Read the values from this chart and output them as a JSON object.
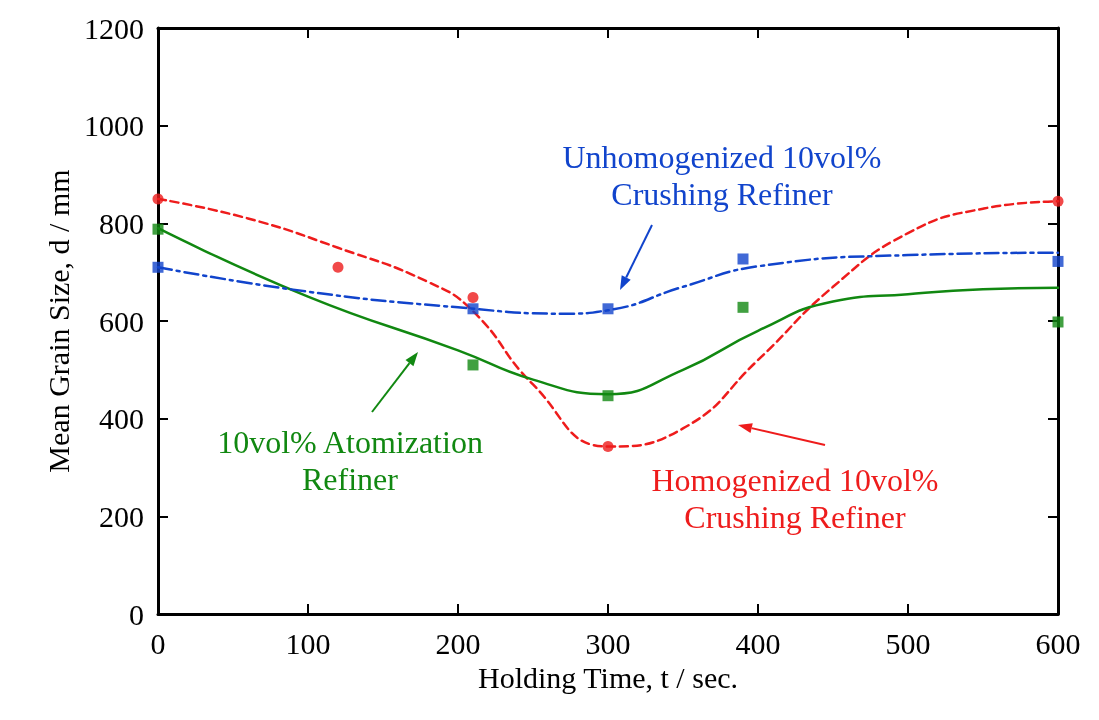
{
  "chart_data": {
    "type": "scatter",
    "xlabel": "Holding Time, t / sec.",
    "ylabel": "Mean Grain Size, d / mm",
    "xlim": [
      0,
      600
    ],
    "xticks": [
      0,
      100,
      200,
      300,
      400,
      500,
      600
    ],
    "ylim": [
      0,
      1200
    ],
    "yticks": [
      0,
      200,
      400,
      600,
      800,
      1000,
      1200
    ],
    "grid": false,
    "series": [
      {
        "type": "scatter",
        "color": "#ee1c1c",
        "marker": "circle",
        "x": [
          0,
          120,
          210,
          300,
          600
        ],
        "values": [
          850,
          710,
          648,
          343,
          845
        ]
      },
      {
        "type": "line",
        "color": "#ee1c1c",
        "marker": "none",
        "line_style": "dashed",
        "x": [
          0,
          60,
          120,
          180,
          210,
          250,
          300,
          350,
          400,
          450,
          500,
          550,
          600
        ],
        "values": [
          850,
          810,
          750,
          680,
          620,
          470,
          343,
          380,
          520,
          670,
          780,
          830,
          845
        ]
      },
      {
        "type": "scatter",
        "color": "#118811",
        "marker": "square",
        "x": [
          0,
          210,
          300,
          390,
          600
        ],
        "values": [
          788,
          510,
          447,
          628,
          598
        ]
      },
      {
        "type": "line",
        "color": "#118811",
        "marker": "none",
        "line_style": "solid",
        "x": [
          0,
          100,
          200,
          250,
          300,
          350,
          400,
          450,
          500,
          550,
          600
        ],
        "values": [
          790,
          650,
          540,
          480,
          450,
          500,
          580,
          640,
          655,
          665,
          668
        ]
      },
      {
        "type": "scatter",
        "color": "#1144cc",
        "marker": "square",
        "x": [
          0,
          210,
          300,
          390,
          600
        ],
        "values": [
          710,
          625,
          625,
          727,
          722
        ]
      },
      {
        "type": "line",
        "color": "#1144cc",
        "marker": "none",
        "line_style": "dashdot",
        "x": [
          0,
          100,
          200,
          270,
          300,
          350,
          400,
          500,
          600
        ],
        "values": [
          710,
          660,
          628,
          615,
          622,
          670,
          712,
          735,
          740
        ]
      }
    ],
    "annotations": [
      "Homogenized 10vol%\nCrushing Refiner",
      "10vol% Atomization\nRefiner",
      "Unhomogenized 10vol%\nCrushing Refiner"
    ]
  }
}
